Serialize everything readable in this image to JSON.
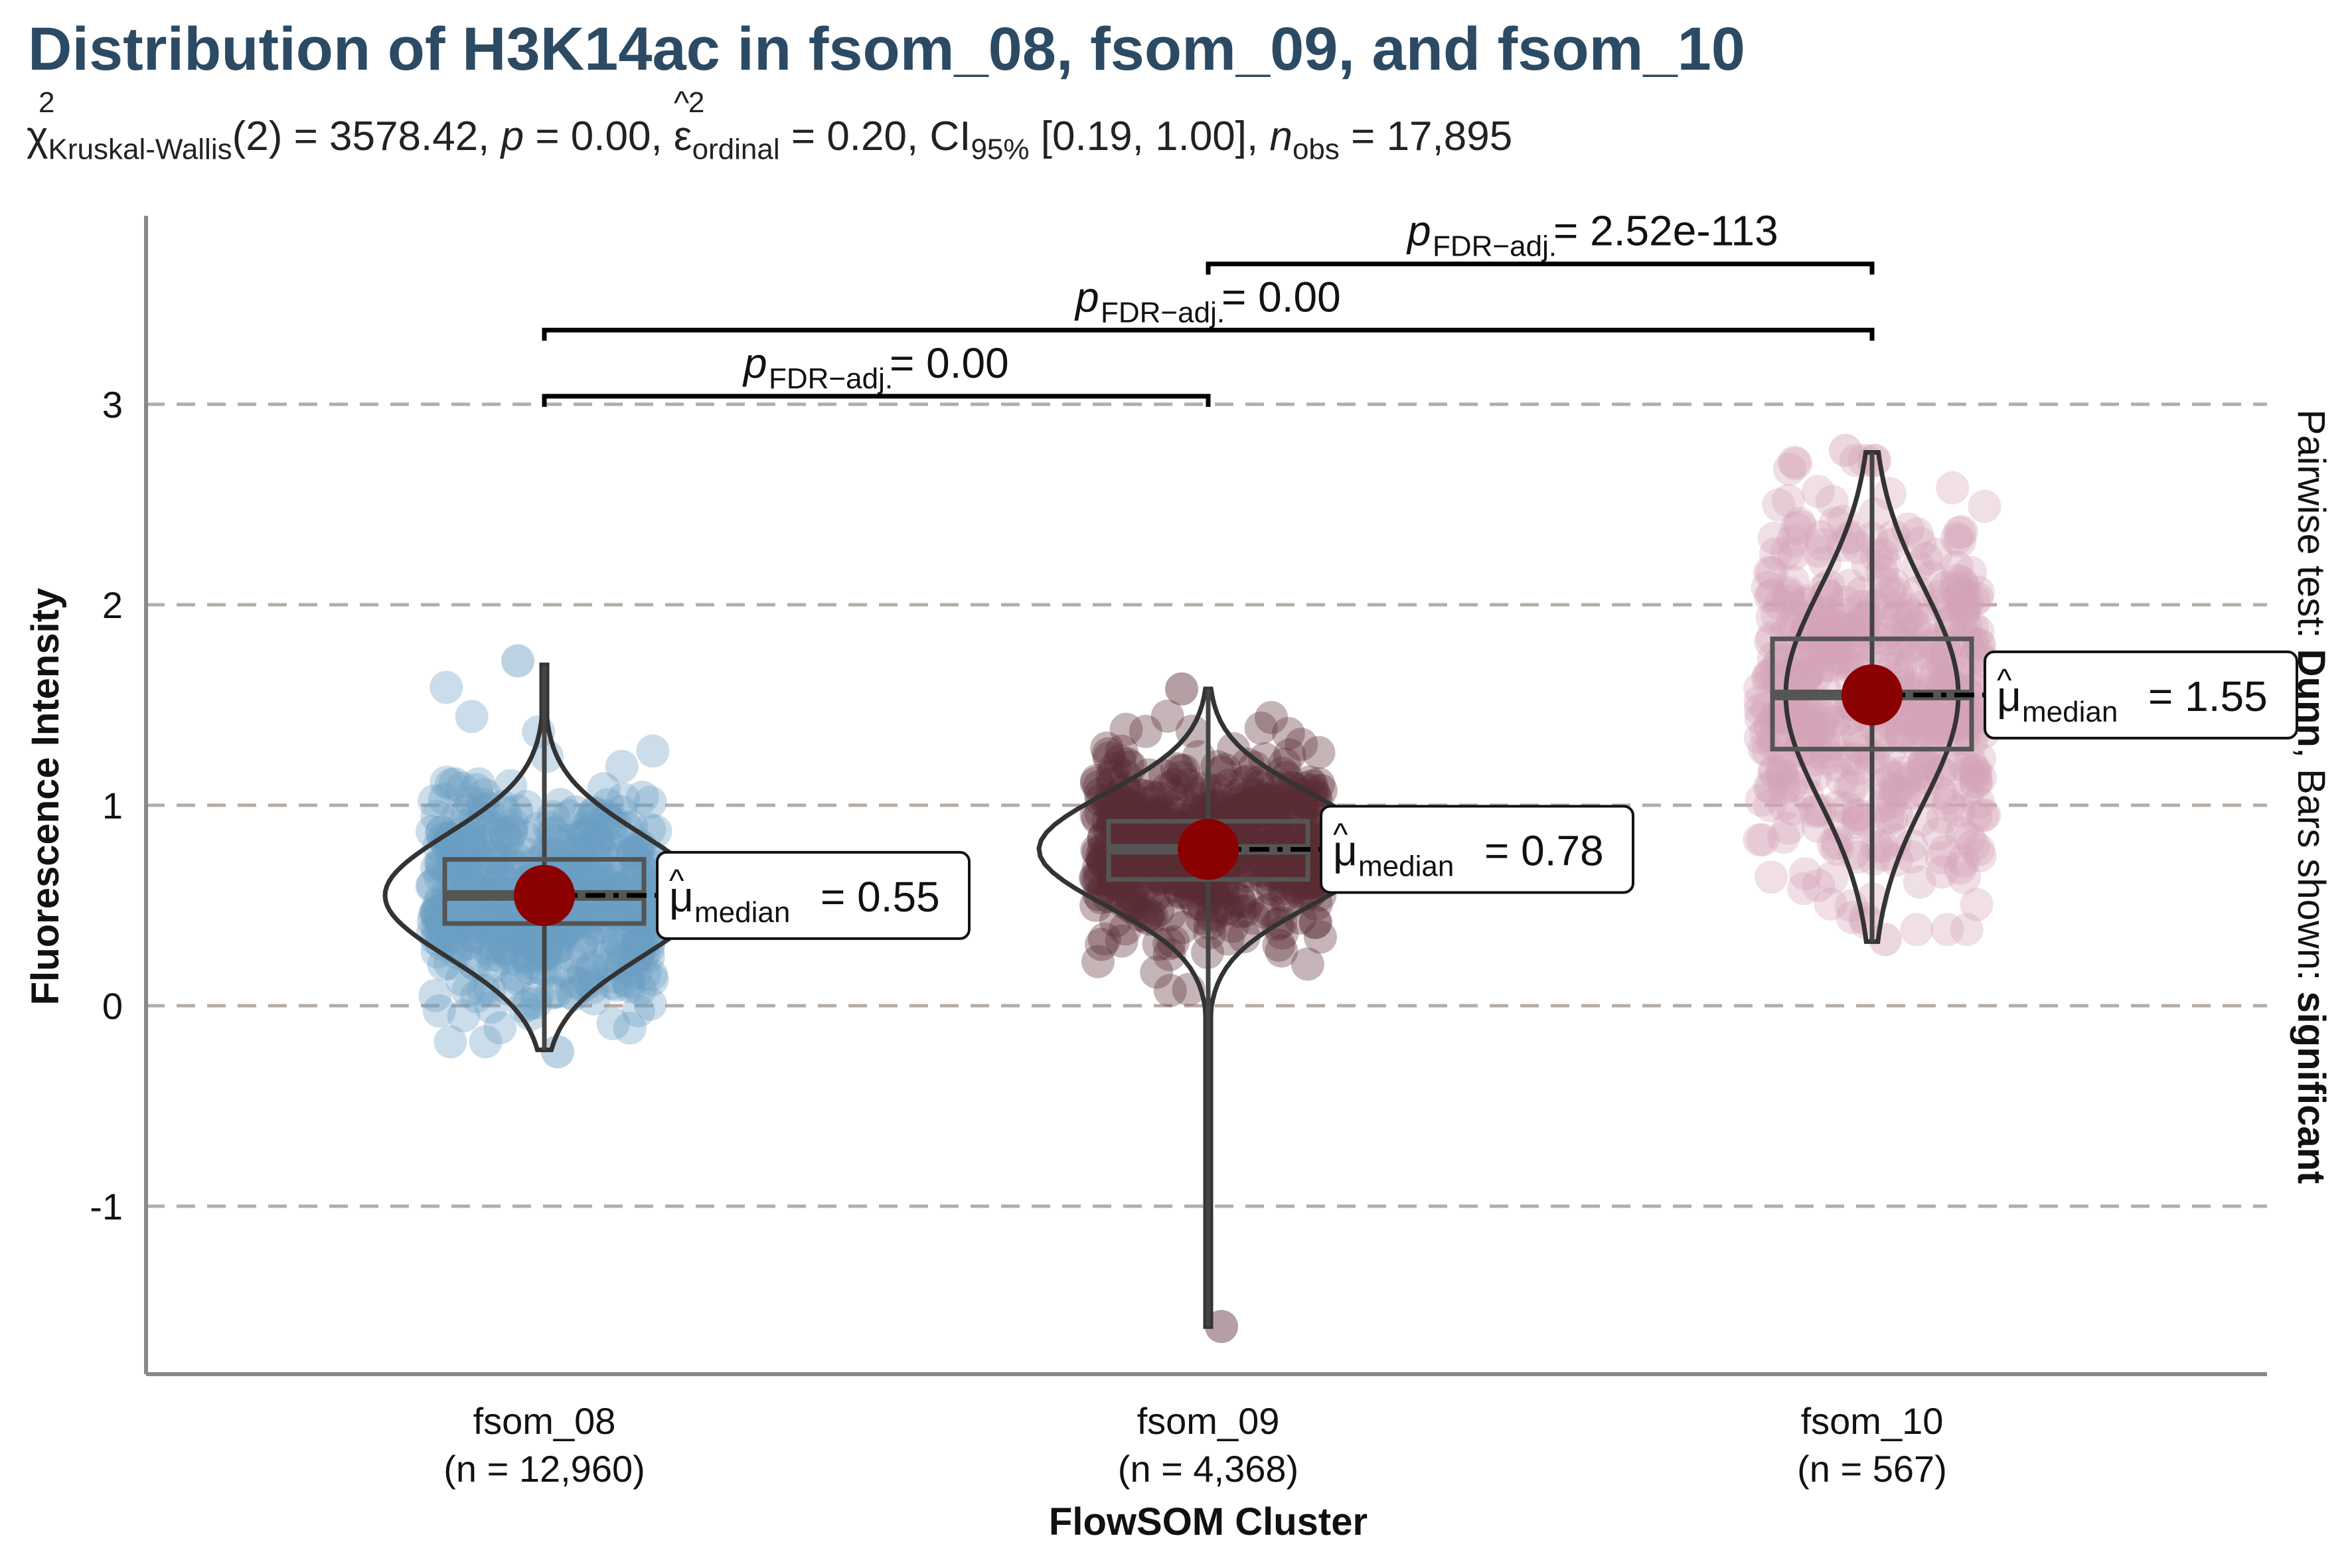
{
  "title": "Distribution of H3K14ac in fsom_08, fsom_09, and fsom_10",
  "subtitle": {
    "chi_symbol": "χ",
    "chi_sup": "2",
    "chi_sub": "Kruskal-Wallis",
    "df": "(2)",
    "statistic": "= 3578.42,",
    "p_label": "p",
    "p_value": "= 0.00,",
    "eps_sup": "2",
    "eps_sub": "ordinal",
    "eps_value": "= 0.20,",
    "ci_label": "CI",
    "ci_sub": "95%",
    "ci_value": "[0.19, 1.00],",
    "n_label": "n",
    "n_sub": "obs",
    "n_value": "= 17,895"
  },
  "chart_data": {
    "type": "violin",
    "xlabel": "FlowSOM Cluster",
    "ylabel": "Fluorescence Intensity",
    "ylim": [
      -1.85,
      3.95
    ],
    "yticks": [
      -1,
      0,
      1,
      2,
      3
    ],
    "ytick_labels": [
      "-1",
      "0",
      "1",
      "2",
      "3"
    ],
    "grid": "horizontal dashed",
    "right_caption": {
      "prefix": "Pairwise test: ",
      "test": "Dunn",
      "middle": ", Bars shown: ",
      "shown": "significant"
    },
    "groups": [
      {
        "name": "fsom_08",
        "n_label": "(n = 12,960)",
        "color": "#6a9ec2",
        "median": 0.55,
        "q1": 0.41,
        "q3": 0.73,
        "whisker_low": -0.22,
        "whisker_high": 1.7,
        "jitter_min": -0.23,
        "jitter_max": 1.72,
        "mean_label_prefix": "μ",
        "mean_label_sub": "median",
        "mean_label_value": "= 0.55"
      },
      {
        "name": "fsom_09",
        "n_label": "(n = 4,368)",
        "color": "#5a2a35",
        "median": 0.78,
        "q1": 0.63,
        "q3": 0.92,
        "whisker_low": -1.6,
        "whisker_high": 1.58,
        "jitter_min": -1.6,
        "jitter_max": 1.58,
        "mean_label_prefix": "μ",
        "mean_label_sub": "median",
        "mean_label_value": "= 0.78"
      },
      {
        "name": "fsom_10",
        "n_label": "(n = 567)",
        "color": "#d4a4b8",
        "median": 1.55,
        "q1": 1.28,
        "q3": 1.83,
        "whisker_low": 0.32,
        "whisker_high": 2.76,
        "jitter_min": 0.33,
        "jitter_max": 2.77,
        "mean_label_prefix": "μ",
        "mean_label_sub": "median",
        "mean_label_value": "= 1.55"
      }
    ],
    "comparisons": [
      {
        "from": "fsom_08",
        "to": "fsom_09",
        "y": 3.04,
        "p_label": "p",
        "p_sub": "FDR−adj.",
        "p_text": "= 0.00"
      },
      {
        "from": "fsom_08",
        "to": "fsom_10",
        "y": 3.37,
        "p_label": "p",
        "p_sub": "FDR−adj.",
        "p_text": "= 0.00"
      },
      {
        "from": "fsom_09",
        "to": "fsom_10",
        "y": 3.7,
        "p_label": "p",
        "p_sub": "FDR−adj.",
        "p_text": "= 2.52e-113"
      }
    ]
  }
}
